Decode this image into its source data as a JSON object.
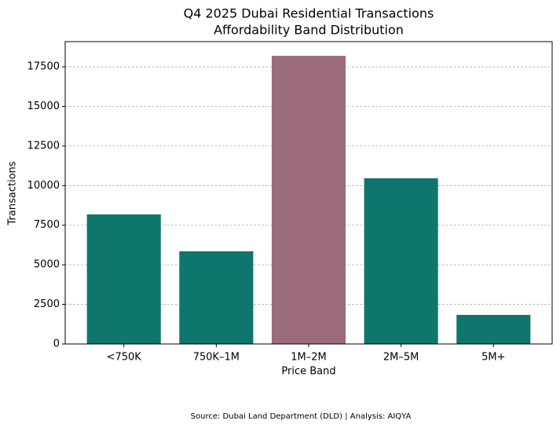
{
  "chart_data": {
    "type": "bar",
    "title": [
      "Q4 2025 Dubai Residential Transactions",
      "Affordability Band Distribution"
    ],
    "x_label": "Price Band",
    "y_label": "Transactions",
    "categories": [
      "<750K",
      "750K–1M",
      "1M–2M",
      "2M–5M",
      "5M+"
    ],
    "values": [
      8180,
      5850,
      18195,
      10460,
      1835
    ],
    "colors": [
      "#0e766c",
      "#0e766c",
      "#9b6b7b",
      "#0e766c",
      "#0e766c"
    ],
    "ylim": [
      0,
      19090
    ],
    "yticks": [
      0,
      2500,
      5000,
      7500,
      10000,
      12500,
      15000,
      17500
    ],
    "grid": true,
    "source": "Source: Dubai Land Department (DLD) | Analysis: AIQYA"
  }
}
